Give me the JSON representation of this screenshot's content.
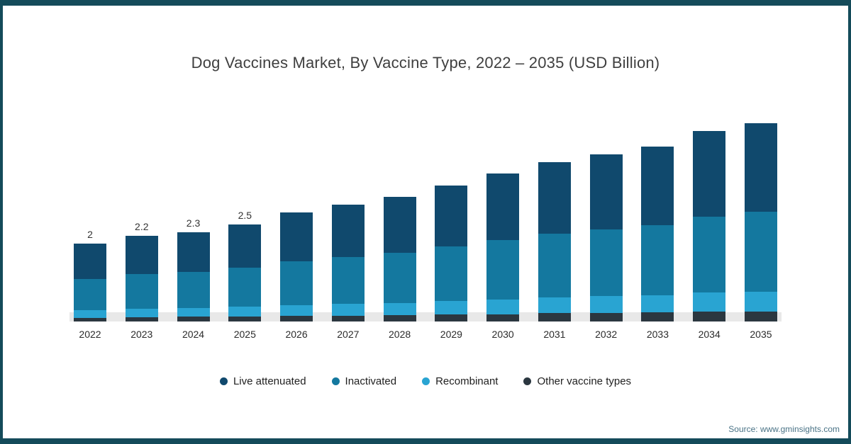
{
  "frame": {
    "border_color": "#144b5a",
    "background": "#ffffff"
  },
  "title": "Dog Vaccines Market, By Vaccine Type, 2022 – 2035 (USD Billion)",
  "source": "Source: www.gminsights.com",
  "legend": [
    {
      "label": "Live attenuated",
      "color": "#10496d"
    },
    {
      "label": "Inactivated",
      "color": "#14789f"
    },
    {
      "label": "Recombinant",
      "color": "#29a4d2"
    },
    {
      "label": "Other vaccine types",
      "color": "#2b3740"
    }
  ],
  "chart_data": {
    "type": "bar",
    "stacked": true,
    "title": "Dog Vaccines Market, By Vaccine Type, 2022 – 2035 (USD Billion)",
    "xlabel": "",
    "ylabel": "USD Billion",
    "ylim": [
      0,
      5.5
    ],
    "grid": false,
    "legend_position": "bottom",
    "categories": [
      "2022",
      "2023",
      "2024",
      "2025",
      "2026",
      "2027",
      "2028",
      "2029",
      "2030",
      "2031",
      "2032",
      "2033",
      "2034",
      "2035"
    ],
    "bar_value_labels": [
      "2",
      "2.2",
      "2.3",
      "2.5",
      "",
      "",
      "",
      "",
      "",
      "",
      "",
      "",
      "",
      ""
    ],
    "totals": [
      2.0,
      2.2,
      2.3,
      2.5,
      2.8,
      3.0,
      3.2,
      3.5,
      3.8,
      4.1,
      4.3,
      4.5,
      4.9,
      5.1
    ],
    "series": [
      {
        "name": "Other vaccine types",
        "color": "#2b3740",
        "values": [
          0.1,
          0.11,
          0.12,
          0.13,
          0.14,
          0.15,
          0.16,
          0.18,
          0.19,
          0.21,
          0.22,
          0.23,
          0.25,
          0.26
        ]
      },
      {
        "name": "Recombinant",
        "color": "#29a4d2",
        "values": [
          0.2,
          0.22,
          0.23,
          0.25,
          0.28,
          0.3,
          0.32,
          0.35,
          0.38,
          0.41,
          0.43,
          0.45,
          0.49,
          0.51
        ]
      },
      {
        "name": "Inactivated",
        "color": "#14789f",
        "values": [
          0.8,
          0.88,
          0.92,
          1.0,
          1.12,
          1.2,
          1.28,
          1.4,
          1.52,
          1.64,
          1.72,
          1.8,
          1.96,
          2.04
        ]
      },
      {
        "name": "Live attenuated",
        "color": "#10496d",
        "values": [
          0.9,
          0.99,
          1.03,
          1.12,
          1.26,
          1.35,
          1.44,
          1.57,
          1.71,
          1.84,
          1.93,
          2.02,
          2.2,
          2.29
        ]
      }
    ],
    "stack_order_bottom_to_top": [
      "Other vaccine types",
      "Recombinant",
      "Inactivated",
      "Live attenuated"
    ]
  }
}
